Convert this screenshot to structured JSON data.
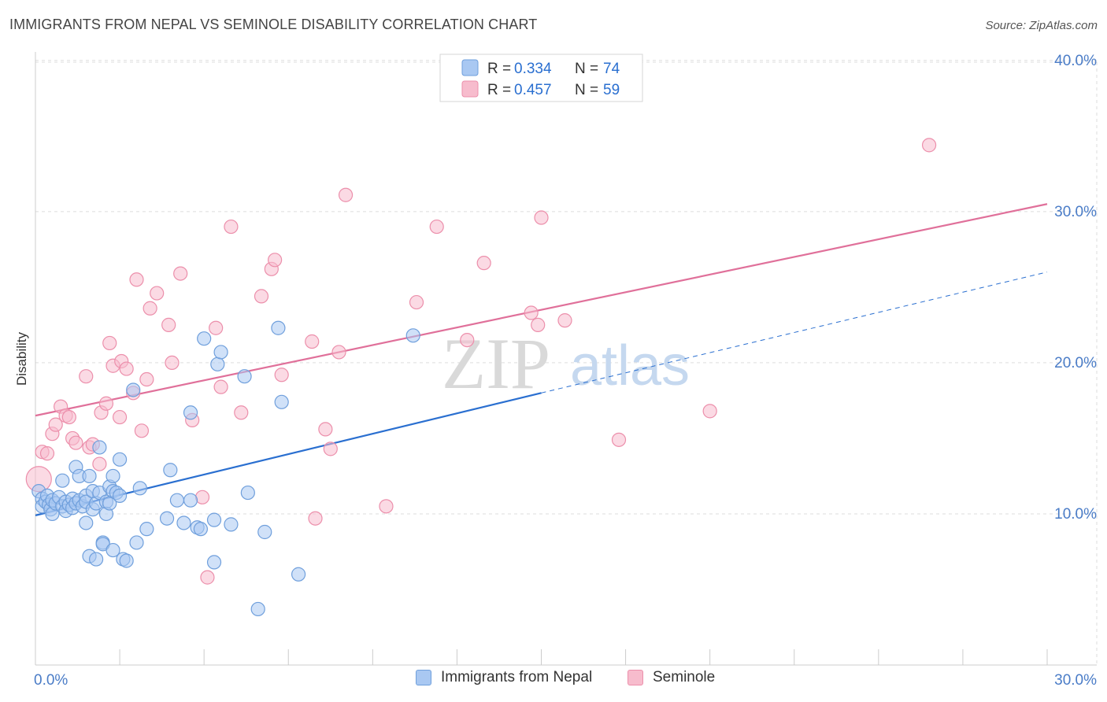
{
  "title": "IMMIGRANTS FROM NEPAL VS SEMINOLE DISABILITY CORRELATION CHART",
  "source": "Source: ZipAtlas.com",
  "watermark": {
    "zip": "ZIP",
    "atlas": "atlas"
  },
  "colors": {
    "nepal_fill": "#a9c8f2",
    "nepal_stroke": "#6f9fdc",
    "nepal_line": "#2a6fd0",
    "seminole_fill": "#f7bccd",
    "seminole_stroke": "#ec8fab",
    "seminole_line": "#e0709a",
    "axis_text": "#4a7cc7",
    "grid": "#dddddd"
  },
  "legend": {
    "nepal": {
      "r_label": "R =",
      "r_value": "0.334",
      "n_label": "N =",
      "n_value": "74"
    },
    "seminole": {
      "r_label": "R =",
      "r_value": "0.457",
      "n_label": "N =",
      "n_value": "59"
    }
  },
  "bottom_legend": {
    "nepal": "Immigrants from Nepal",
    "seminole": "Seminole"
  },
  "chart_data": {
    "type": "scatter",
    "title": "IMMIGRANTS FROM NEPAL VS SEMINOLE DISABILITY CORRELATION CHART",
    "xlabel": "",
    "ylabel": "Disability",
    "xlim": [
      0,
      30
    ],
    "ylim": [
      0,
      41.5
    ],
    "x_tick_labels": [
      {
        "value": 0,
        "label": "0.0%"
      },
      {
        "value": 30,
        "label": "30.0%"
      }
    ],
    "y_tick_labels": [
      {
        "value": 10,
        "label": "10.0%"
      },
      {
        "value": 20,
        "label": "20.0%"
      },
      {
        "value": 30,
        "label": "30.0%"
      },
      {
        "value": 40,
        "label": "40.0%"
      }
    ],
    "series": [
      {
        "name": "Immigrants from Nepal",
        "r": 0.334,
        "n": 74,
        "trend": {
          "x0": 0,
          "y0": 9.9,
          "x1": 15.0,
          "y1": 18.0,
          "dash_x1": 30.0,
          "dash_y1": 26.0
        },
        "points": [
          [
            0.1,
            11.5
          ],
          [
            0.2,
            11.0
          ],
          [
            0.2,
            10.5
          ],
          [
            0.3,
            10.8
          ],
          [
            0.35,
            11.2
          ],
          [
            0.4,
            10.6
          ],
          [
            0.45,
            10.3
          ],
          [
            0.5,
            10.9
          ],
          [
            0.5,
            10.0
          ],
          [
            0.6,
            10.7
          ],
          [
            0.7,
            11.1
          ],
          [
            0.8,
            10.5
          ],
          [
            0.8,
            12.2
          ],
          [
            0.9,
            10.8
          ],
          [
            0.9,
            10.2
          ],
          [
            1.0,
            10.6
          ],
          [
            1.1,
            11.0
          ],
          [
            1.1,
            10.4
          ],
          [
            1.2,
            13.1
          ],
          [
            1.2,
            10.7
          ],
          [
            1.3,
            10.9
          ],
          [
            1.3,
            12.5
          ],
          [
            1.4,
            10.5
          ],
          [
            1.5,
            11.2
          ],
          [
            1.5,
            10.8
          ],
          [
            1.5,
            9.4
          ],
          [
            1.6,
            12.5
          ],
          [
            1.6,
            7.2
          ],
          [
            1.7,
            11.5
          ],
          [
            1.7,
            10.3
          ],
          [
            1.8,
            10.7
          ],
          [
            1.8,
            7.0
          ],
          [
            1.9,
            14.4
          ],
          [
            1.9,
            11.4
          ],
          [
            2.0,
            8.1
          ],
          [
            2.0,
            8.0
          ],
          [
            2.1,
            10.8
          ],
          [
            2.1,
            10.0
          ],
          [
            2.2,
            11.8
          ],
          [
            2.2,
            10.7
          ],
          [
            2.3,
            12.5
          ],
          [
            2.3,
            11.5
          ],
          [
            2.3,
            7.6
          ],
          [
            2.4,
            11.4
          ],
          [
            2.5,
            13.6
          ],
          [
            2.5,
            11.2
          ],
          [
            2.6,
            7.0
          ],
          [
            2.7,
            6.9
          ],
          [
            2.9,
            18.2
          ],
          [
            3.0,
            8.1
          ],
          [
            3.1,
            11.7
          ],
          [
            3.3,
            9.0
          ],
          [
            3.9,
            9.7
          ],
          [
            4.0,
            12.9
          ],
          [
            4.2,
            10.9
          ],
          [
            4.4,
            9.4
          ],
          [
            4.6,
            10.9
          ],
          [
            4.6,
            16.7
          ],
          [
            4.8,
            9.1
          ],
          [
            4.9,
            9.0
          ],
          [
            5.0,
            21.6
          ],
          [
            5.3,
            9.6
          ],
          [
            5.3,
            6.8
          ],
          [
            5.4,
            19.9
          ],
          [
            5.5,
            20.7
          ],
          [
            5.8,
            9.3
          ],
          [
            6.2,
            19.1
          ],
          [
            6.3,
            11.4
          ],
          [
            6.6,
            3.7
          ],
          [
            6.8,
            8.8
          ],
          [
            7.2,
            22.3
          ],
          [
            7.3,
            17.4
          ],
          [
            7.8,
            6.0
          ],
          [
            11.2,
            21.8
          ]
        ]
      },
      {
        "name": "Seminole",
        "r": 0.457,
        "n": 59,
        "trend": {
          "x0": 0,
          "y0": 16.5,
          "x1": 30.0,
          "y1": 30.5
        },
        "points": [
          [
            0.1,
            12.3
          ],
          [
            0.2,
            14.1
          ],
          [
            0.35,
            14.0
          ],
          [
            0.5,
            15.3
          ],
          [
            0.6,
            15.9
          ],
          [
            0.75,
            17.1
          ],
          [
            0.9,
            16.5
          ],
          [
            1.0,
            16.4
          ],
          [
            1.1,
            15.0
          ],
          [
            1.2,
            14.7
          ],
          [
            1.5,
            19.1
          ],
          [
            1.6,
            14.4
          ],
          [
            1.7,
            14.6
          ],
          [
            1.9,
            13.3
          ],
          [
            1.95,
            16.7
          ],
          [
            2.1,
            17.3
          ],
          [
            2.2,
            21.3
          ],
          [
            2.3,
            19.8
          ],
          [
            2.5,
            16.4
          ],
          [
            2.55,
            20.1
          ],
          [
            2.7,
            19.6
          ],
          [
            2.9,
            18.0
          ],
          [
            3.0,
            25.5
          ],
          [
            3.15,
            15.5
          ],
          [
            3.3,
            18.9
          ],
          [
            3.4,
            23.6
          ],
          [
            3.6,
            24.6
          ],
          [
            3.95,
            22.5
          ],
          [
            4.05,
            20.0
          ],
          [
            4.3,
            25.9
          ],
          [
            4.65,
            16.2
          ],
          [
            4.95,
            11.1
          ],
          [
            5.1,
            5.8
          ],
          [
            5.35,
            22.3
          ],
          [
            5.5,
            18.4
          ],
          [
            5.8,
            29.0
          ],
          [
            6.1,
            16.7
          ],
          [
            6.7,
            24.4
          ],
          [
            7.0,
            26.2
          ],
          [
            7.1,
            26.8
          ],
          [
            7.3,
            19.2
          ],
          [
            8.2,
            21.4
          ],
          [
            8.3,
            9.7
          ],
          [
            8.6,
            15.6
          ],
          [
            8.75,
            14.3
          ],
          [
            9.0,
            20.7
          ],
          [
            9.2,
            31.1
          ],
          [
            10.4,
            10.5
          ],
          [
            11.3,
            24.0
          ],
          [
            11.9,
            29.0
          ],
          [
            12.8,
            21.5
          ],
          [
            13.3,
            26.6
          ],
          [
            14.7,
            23.3
          ],
          [
            14.9,
            22.5
          ],
          [
            15.0,
            29.6
          ],
          [
            15.7,
            22.8
          ],
          [
            17.3,
            14.9
          ],
          [
            20.0,
            16.8
          ],
          [
            26.5,
            34.4
          ]
        ]
      }
    ]
  }
}
